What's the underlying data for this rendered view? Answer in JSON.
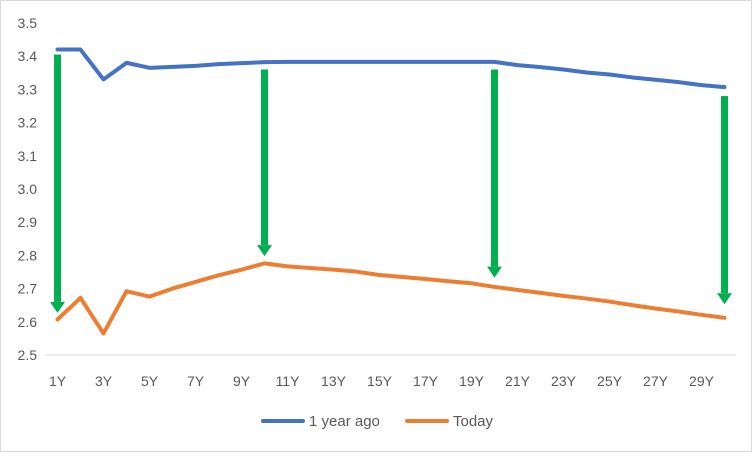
{
  "chart_data": {
    "type": "line",
    "title": "",
    "xlabel": "",
    "ylabel": "",
    "x": [
      "1Y",
      "2Y",
      "3Y",
      "4Y",
      "5Y",
      "6Y",
      "7Y",
      "8Y",
      "9Y",
      "10Y",
      "11Y",
      "12Y",
      "13Y",
      "14Y",
      "15Y",
      "16Y",
      "17Y",
      "18Y",
      "19Y",
      "20Y",
      "21Y",
      "22Y",
      "23Y",
      "24Y",
      "25Y",
      "26Y",
      "27Y",
      "28Y",
      "29Y",
      "30Y"
    ],
    "x_tick_labels": [
      "1Y",
      "3Y",
      "5Y",
      "7Y",
      "9Y",
      "11Y",
      "13Y",
      "15Y",
      "17Y",
      "19Y",
      "21Y",
      "23Y",
      "25Y",
      "27Y",
      "29Y"
    ],
    "y_ticks": [
      "2.5",
      "2.6",
      "2.7",
      "2.8",
      "2.9",
      "3.0",
      "3.1",
      "3.2",
      "3.3",
      "3.4",
      "3.5"
    ],
    "ylim": [
      2.5,
      3.5
    ],
    "grid": false,
    "legend_position": "bottom",
    "series": [
      {
        "name": "1 year ago",
        "color": "#4472c4",
        "values": [
          3.42,
          3.42,
          3.33,
          3.38,
          3.365,
          3.368,
          3.371,
          3.376,
          3.379,
          3.382,
          3.383,
          3.383,
          3.383,
          3.383,
          3.383,
          3.383,
          3.383,
          3.383,
          3.383,
          3.383,
          3.373,
          3.367,
          3.36,
          3.351,
          3.345,
          3.336,
          3.329,
          3.322,
          3.313,
          3.307
        ]
      },
      {
        "name": "Today",
        "color": "#ed7d31",
        "values": [
          2.607,
          2.672,
          2.565,
          2.692,
          2.676,
          2.7,
          2.72,
          2.74,
          2.757,
          2.776,
          2.767,
          2.762,
          2.757,
          2.751,
          2.741,
          2.735,
          2.729,
          2.722,
          2.716,
          2.705,
          2.696,
          2.687,
          2.678,
          2.67,
          2.661,
          2.65,
          2.64,
          2.631,
          2.621,
          2.612
        ]
      }
    ],
    "annotations": [
      {
        "type": "arrow",
        "color": "#00b050",
        "x": "1Y",
        "from": 3.405,
        "to": 2.627
      },
      {
        "type": "arrow",
        "color": "#00b050",
        "x": "10Y",
        "from": 3.36,
        "to": 2.798
      },
      {
        "type": "arrow",
        "color": "#00b050",
        "x": "20Y",
        "from": 3.36,
        "to": 2.733
      },
      {
        "type": "arrow",
        "color": "#00b050",
        "x": "30Y",
        "from": 3.28,
        "to": 2.653
      }
    ]
  }
}
